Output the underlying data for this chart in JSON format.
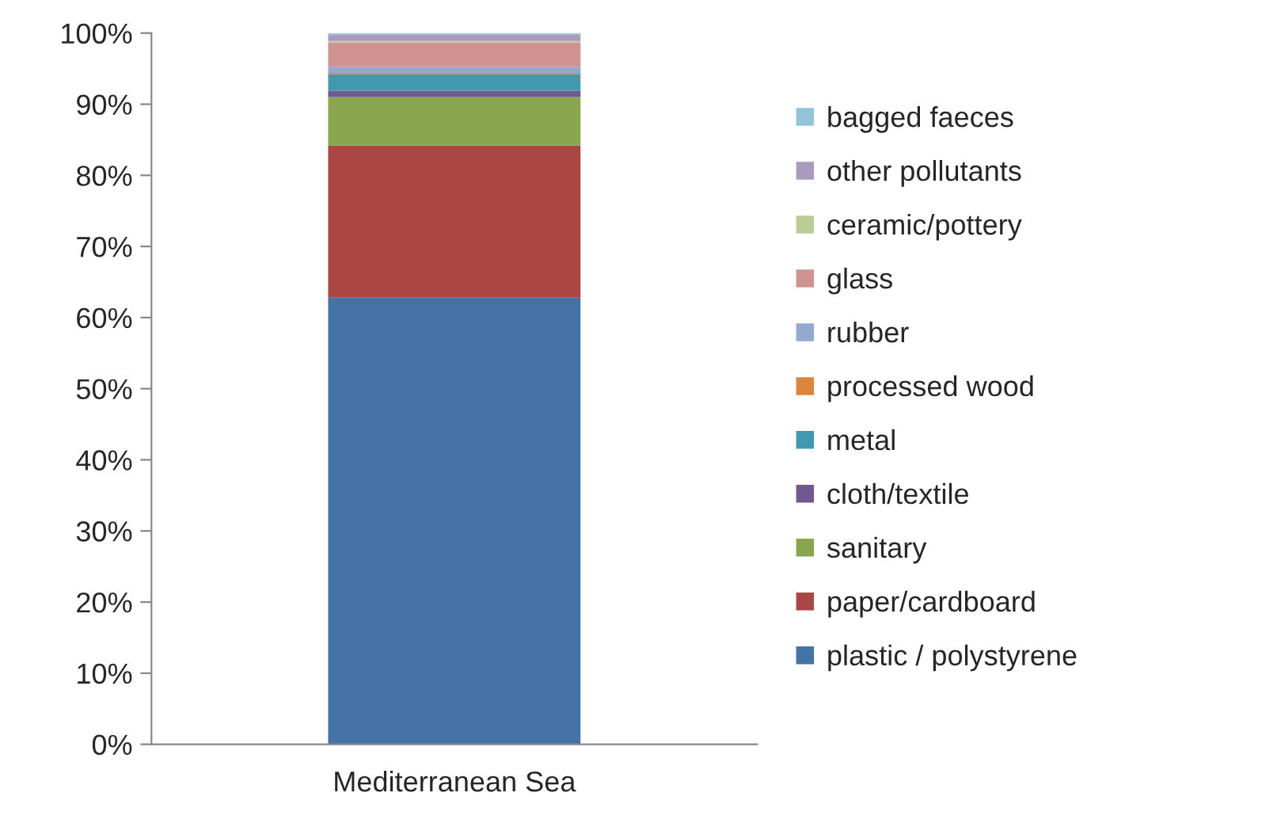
{
  "chart_data": {
    "type": "bar",
    "stacked": true,
    "categories": [
      "Mediterranean Sea"
    ],
    "series": [
      {
        "name": "plastic / polystyrene",
        "color": "#4572a7",
        "values": [
          62.8
        ]
      },
      {
        "name": "paper/cardboard",
        "color": "#aa4643",
        "values": [
          21.4
        ]
      },
      {
        "name": "sanitary",
        "color": "#89a54e",
        "values": [
          6.8
        ]
      },
      {
        "name": "cloth/textile",
        "color": "#71588f",
        "values": [
          0.9
        ]
      },
      {
        "name": "metal",
        "color": "#4198af",
        "values": [
          2.3
        ]
      },
      {
        "name": "processed wood",
        "color": "#db843d",
        "values": [
          0.2
        ]
      },
      {
        "name": "rubber",
        "color": "#93a9cf",
        "values": [
          0.8
        ]
      },
      {
        "name": "glass",
        "color": "#d19392",
        "values": [
          3.5
        ]
      },
      {
        "name": "ceramic/pottery",
        "color": "#b9cd96",
        "values": [
          0.2
        ]
      },
      {
        "name": "other pollutants",
        "color": "#a99bbd",
        "values": [
          0.9
        ]
      },
      {
        "name": "bagged faeces",
        "color": "#92c5d9",
        "values": [
          0.2
        ]
      }
    ],
    "ylim": [
      0,
      100
    ],
    "yticks": [
      {
        "value": 0,
        "label": "0%"
      },
      {
        "value": 10,
        "label": "10%"
      },
      {
        "value": 20,
        "label": "20%"
      },
      {
        "value": 30,
        "label": "30%"
      },
      {
        "value": 40,
        "label": "40%"
      },
      {
        "value": 50,
        "label": "50%"
      },
      {
        "value": 60,
        "label": "60%"
      },
      {
        "value": 70,
        "label": "70%"
      },
      {
        "value": 80,
        "label": "80%"
      },
      {
        "value": 90,
        "label": "90%"
      },
      {
        "value": 100,
        "label": "100%"
      }
    ],
    "grid": false,
    "legend": "right"
  }
}
